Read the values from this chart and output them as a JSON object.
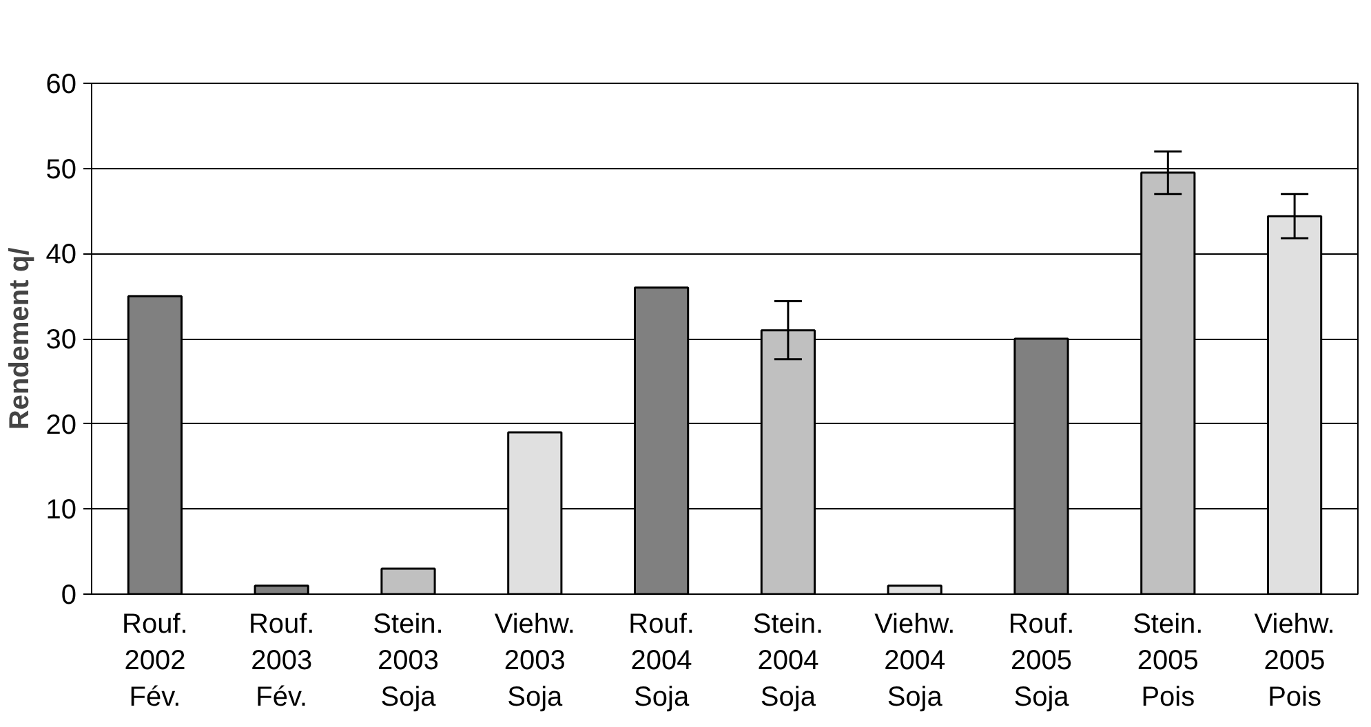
{
  "chart_data": {
    "type": "bar",
    "ylabel": "Rendement q/",
    "categories": [
      "Rouf.\n2002\nFév.",
      "Rouf.\n2003\nFév.",
      "Stein.\n2003\nSoja",
      "Viehw.\n2003\nSoja",
      "Rouf.\n2004\nSoja",
      "Stein.\n2004\nSoja",
      "Viehw.\n2004\nSoja",
      "Rouf.\n2005\nSoja",
      "Stein.\n2005\nPois",
      "Viehw.\n2005\nPois"
    ],
    "values": [
      35,
      1,
      3,
      19,
      36,
      31,
      1,
      30,
      49.5,
      44.4
    ],
    "errors": [
      null,
      null,
      null,
      null,
      null,
      3.4,
      null,
      null,
      2.5,
      2.6
    ],
    "colors": [
      "#808080",
      "#808080",
      "#c0c0c0",
      "#e0e0e0",
      "#808080",
      "#c0c0c0",
      "#e0e0e0",
      "#808080",
      "#c0c0c0",
      "#e0e0e0"
    ],
    "ylim": [
      0,
      60
    ],
    "yticks": [
      0,
      10,
      20,
      30,
      40,
      50,
      60
    ],
    "grid": "y"
  }
}
